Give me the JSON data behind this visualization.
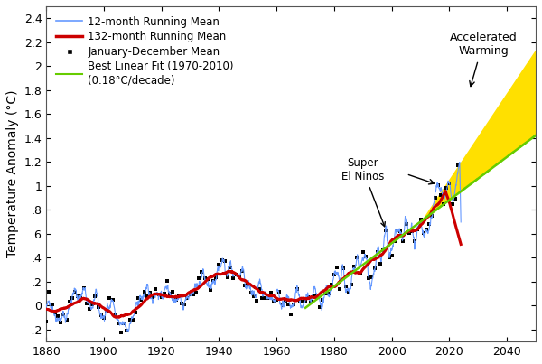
{
  "title": "",
  "ylabel": "Temperature Anomaly (°C)",
  "xlabel": "",
  "xlim": [
    1880,
    2050
  ],
  "ylim": [
    -0.3,
    2.5
  ],
  "yticks": [
    -0.2,
    0.0,
    0.2,
    0.4,
    0.6,
    0.8,
    1.0,
    1.2,
    1.4,
    1.6,
    1.8,
    2.0,
    2.2,
    2.4
  ],
  "xticks": [
    1880,
    1900,
    1920,
    1940,
    1960,
    1980,
    2000,
    2020,
    2040
  ],
  "line12_color": "#6699FF",
  "line132_color": "#CC0000",
  "scatter_color": "#000000",
  "linear_fit_color": "#66CC00",
  "yellow_fill": "#FFE000",
  "linear_trend_rate": 0.018,
  "linear_fit_start_year": 1970,
  "linear_fit_end_year": 2010,
  "linear_fit_value_at_1970": -0.02,
  "accel_start_year": 2011,
  "accel_end_year": 2050,
  "accel_low_rate": 0.018,
  "accel_high_rate": 0.036,
  "legend_labels": [
    "12-month Running Mean",
    "132-month Running Mean",
    "January-December Mean",
    "Best Linear Fit (1970-2010)\n(0.18°C/decade)"
  ],
  "background_color": "#FFFFFF",
  "font_size": 10
}
